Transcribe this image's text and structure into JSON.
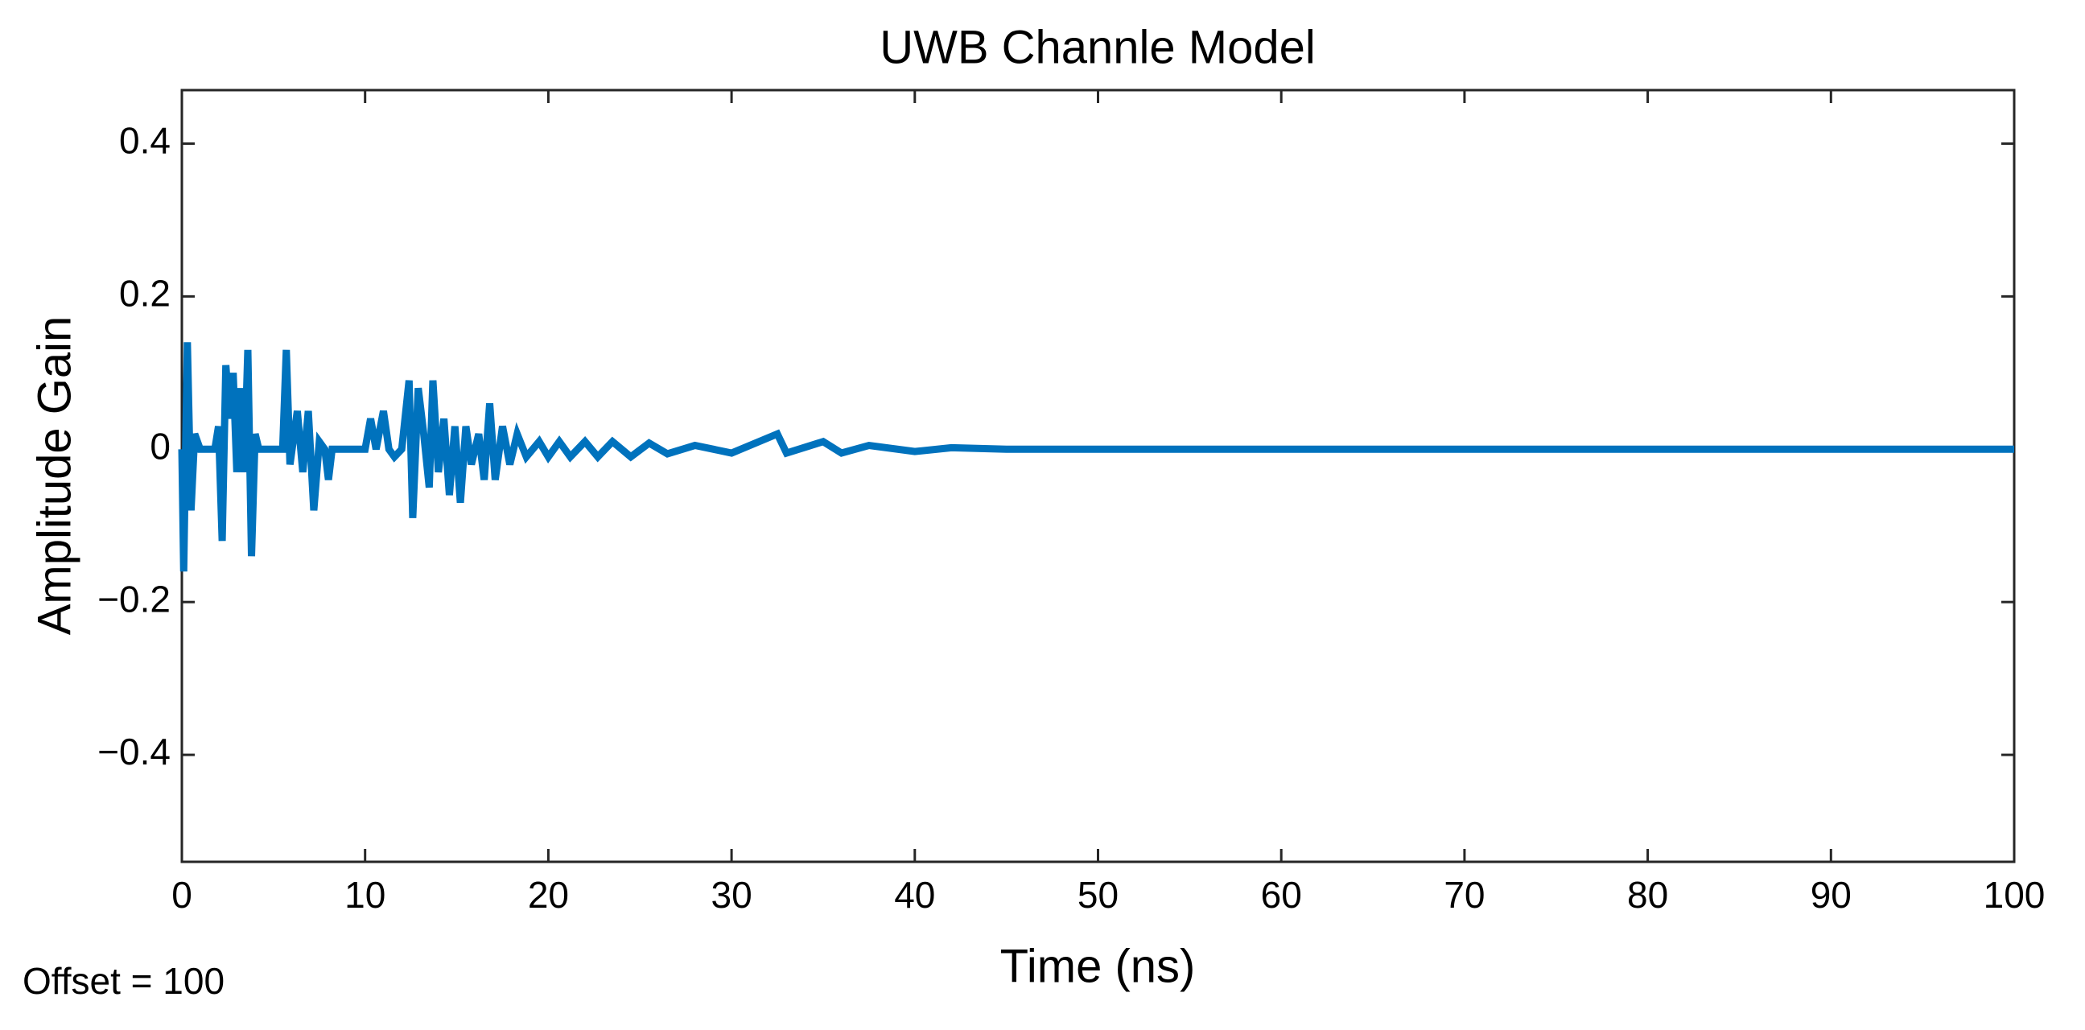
{
  "chart_data": {
    "type": "line",
    "title": "UWB Channle Model",
    "xlabel": "Time (ns)",
    "ylabel": "Amplitude Gain",
    "annotation": "Offset = 100",
    "xlim": [
      0,
      100
    ],
    "ylim": [
      -0.54,
      0.47
    ],
    "xticks": [
      0,
      10,
      20,
      30,
      40,
      50,
      60,
      70,
      80,
      90,
      100
    ],
    "yticks": [
      {
        "value": -0.4,
        "label": "−0.4"
      },
      {
        "value": -0.2,
        "label": "−0.2"
      },
      0,
      0.2,
      0.4
    ],
    "grid": false,
    "x": [
      0,
      0.1,
      0.3,
      0.5,
      0.7,
      1,
      1.8,
      2,
      2.2,
      2.4,
      2.6,
      2.8,
      3,
      3.2,
      3.4,
      3.6,
      3.8,
      4,
      4.2,
      5.5,
      5.7,
      5.9,
      6.3,
      6.6,
      6.9,
      7.2,
      7.5,
      7.8,
      8,
      8.2,
      10,
      10.3,
      10.6,
      11,
      11.3,
      11.6,
      12,
      12.4,
      12.6,
      12.9,
      13.2,
      13.5,
      13.7,
      14,
      14.3,
      14.6,
      14.9,
      15.2,
      15.5,
      15.8,
      16.2,
      16.5,
      16.8,
      17.1,
      17.5,
      17.9,
      18.3,
      18.8,
      19.5,
      20,
      20.6,
      21.2,
      22,
      22.7,
      23.5,
      24.5,
      25.5,
      26.5,
      28,
      30,
      32.5,
      33,
      35,
      36,
      37.5,
      40,
      42,
      45,
      100
    ],
    "series": [
      {
        "name": "Amplitude Gain",
        "color": "#0072bd",
        "values": [
          0,
          -0.16,
          0.14,
          -0.08,
          0.02,
          0,
          0,
          0.03,
          -0.12,
          0.11,
          0.04,
          0.1,
          -0.03,
          0.08,
          -0.03,
          0.13,
          -0.14,
          0.02,
          0,
          0,
          0.13,
          -0.02,
          0.05,
          -0.03,
          0.05,
          -0.08,
          0.01,
          0,
          -0.04,
          0,
          0,
          0.04,
          0,
          0.05,
          0,
          -0.01,
          0,
          0.09,
          -0.09,
          0.08,
          0.02,
          -0.05,
          0.09,
          -0.03,
          0.04,
          -0.06,
          0.03,
          -0.07,
          0.03,
          -0.02,
          0.02,
          -0.04,
          0.06,
          -0.04,
          0.03,
          -0.02,
          0.02,
          -0.01,
          0.01,
          -0.01,
          0.01,
          -0.01,
          0.01,
          -0.01,
          0.01,
          -0.01,
          0.008,
          -0.006,
          0.005,
          -0.005,
          0.02,
          -0.005,
          0.01,
          -0.005,
          0.005,
          -0.003,
          0.002,
          0,
          0
        ]
      }
    ]
  }
}
